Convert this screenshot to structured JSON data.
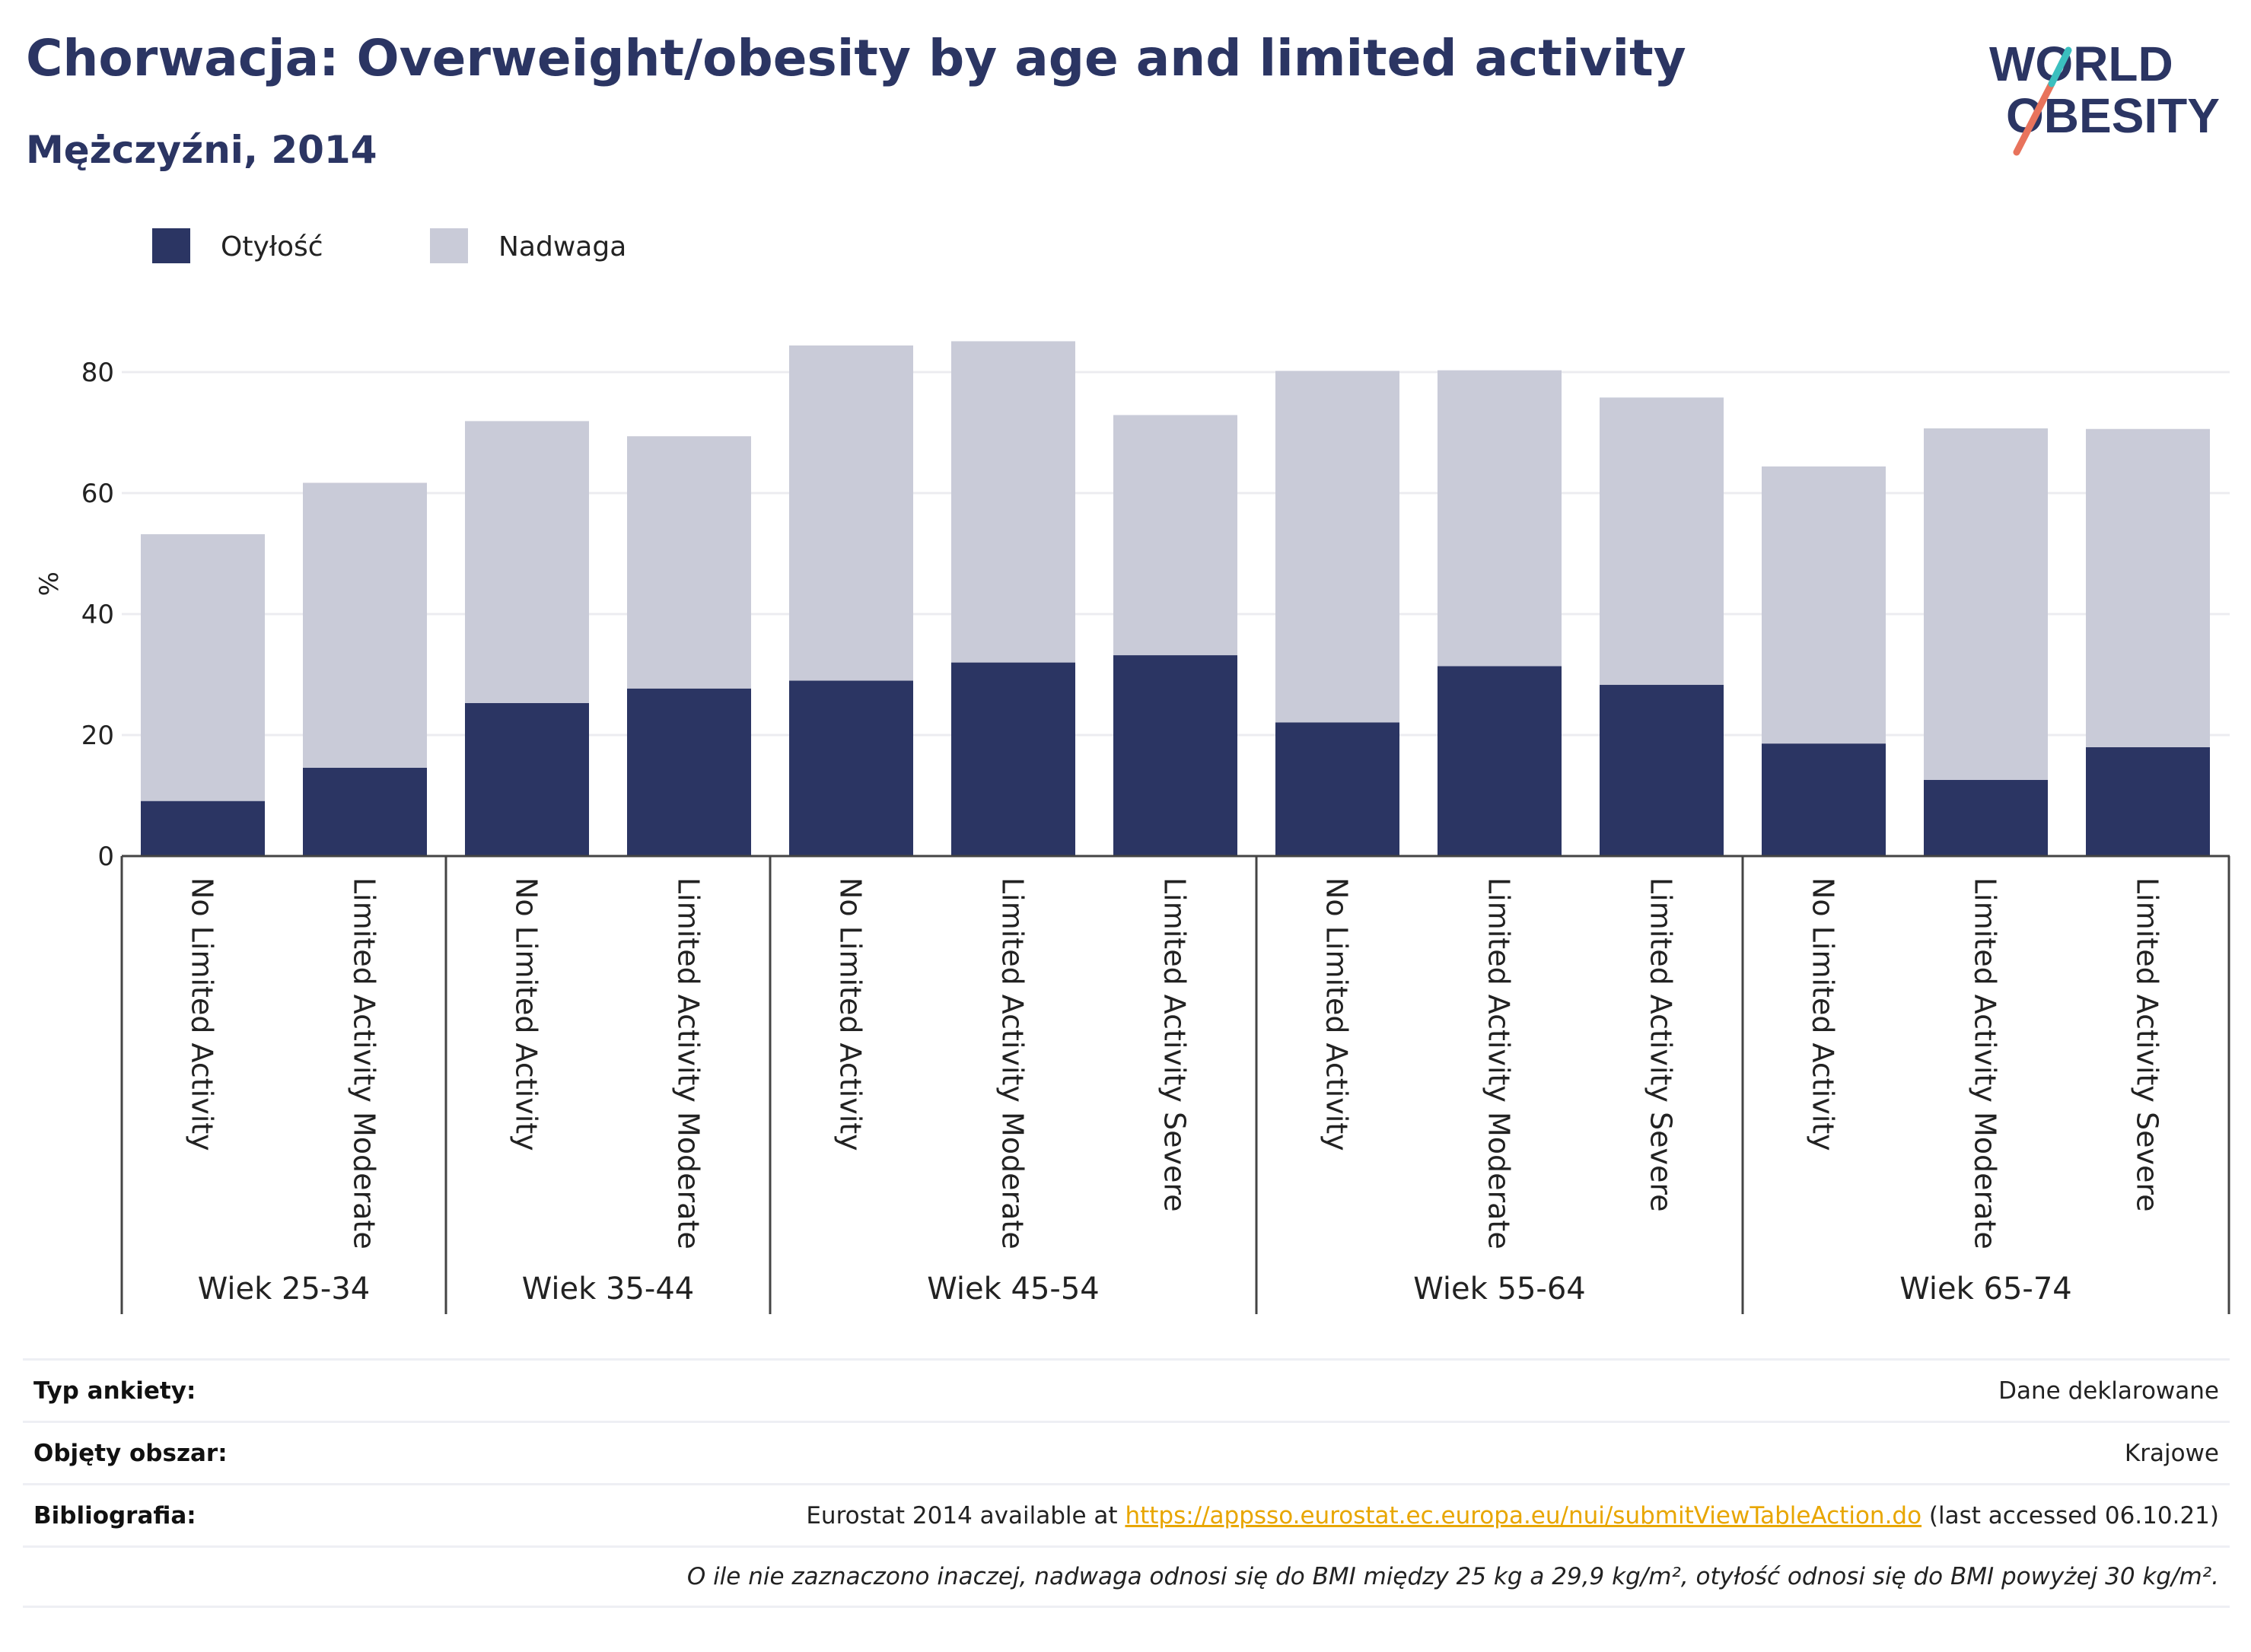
{
  "header": {
    "title": "Chorwacja: Overweight/obesity by age and limited activity",
    "subtitle": "Mężczyźni, 2014"
  },
  "logo": {
    "line1": "WORLD",
    "line2": "OBESITY"
  },
  "colors": {
    "obesity": "#2b3563",
    "overweight": "#c9cbd8",
    "title": "#2b3563",
    "link": "#e8a600"
  },
  "chart_data": {
    "type": "bar",
    "stacked": true,
    "ylabel": "%",
    "ylim": [
      0,
      90
    ],
    "yticks": [
      0,
      20,
      40,
      60,
      80
    ],
    "grid": true,
    "legend_position": "top-left",
    "groups": [
      {
        "label": "Wiek 25-34",
        "categories": [
          "No Limited Activity",
          "Limited Activity Moderate"
        ]
      },
      {
        "label": "Wiek 35-44",
        "categories": [
          "No Limited Activity",
          "Limited Activity Moderate"
        ]
      },
      {
        "label": "Wiek 45-54",
        "categories": [
          "No Limited Activity",
          "Limited Activity Moderate",
          "Limited Activity Severe"
        ]
      },
      {
        "label": "Wiek 55-64",
        "categories": [
          "No Limited Activity",
          "Limited Activity Moderate",
          "Limited Activity Severe"
        ]
      },
      {
        "label": "Wiek 65-74",
        "categories": [
          "No Limited Activity",
          "Limited Activity Moderate",
          "Limited Activity Severe"
        ]
      }
    ],
    "series": [
      {
        "name": "Otyłość",
        "color": "#2b3563",
        "values": [
          9.1,
          14.6,
          25.3,
          27.7,
          29.0,
          32.0,
          33.2,
          22.1,
          31.4,
          28.3,
          18.6,
          12.6,
          18.0
        ]
      },
      {
        "name": "Nadwaga",
        "color": "#c9cbd8",
        "values": [
          44.1,
          47.1,
          46.6,
          41.7,
          55.4,
          53.1,
          39.7,
          58.1,
          48.9,
          47.5,
          45.8,
          58.1,
          52.6
        ]
      }
    ]
  },
  "footer": {
    "rows": [
      {
        "label": "Typ ankiety:",
        "value": "Dane deklarowane"
      },
      {
        "label": "Objęty obszar:",
        "value": "Krajowe"
      }
    ],
    "bibliography": {
      "label": "Bibliografia:",
      "prefix": "Eurostat 2014 available at ",
      "link": "https://appsso.eurostat.ec.europa.eu/nui/submitViewTableAction.do",
      "suffix": " (last accessed 06.10.21)"
    },
    "note": "O ile nie zaznaczono inaczej, nadwaga odnosi się do BMI między 25 kg a 29,9 kg/m², otyłość odnosi się do BMI powyżej 30 kg/m²."
  }
}
